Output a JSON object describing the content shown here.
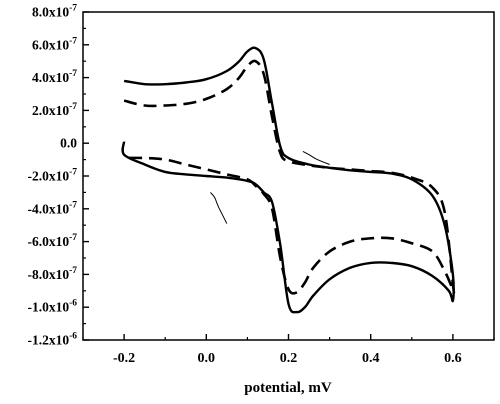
{
  "chart_data": {
    "type": "line",
    "title": "",
    "xlabel": "potential, mV",
    "ylabel": "",
    "xlim": [
      -0.3,
      0.7
    ],
    "ylim": [
      -1.2e-06,
      8e-07
    ],
    "grid": false,
    "legend": "none",
    "x_ticks": [
      {
        "value": -0.2,
        "label": "-0.2"
      },
      {
        "value": 0.0,
        "label": "0.0"
      },
      {
        "value": 0.2,
        "label": "0.2"
      },
      {
        "value": 0.4,
        "label": "0.4"
      },
      {
        "value": 0.6,
        "label": "0.6"
      }
    ],
    "y_ticks": [
      {
        "value": 8e-07,
        "mantissa": "8.0x10",
        "exp": "-7"
      },
      {
        "value": 6e-07,
        "mantissa": "6.0x10",
        "exp": "-7"
      },
      {
        "value": 4e-07,
        "mantissa": "4.0x10",
        "exp": "-7"
      },
      {
        "value": 2e-07,
        "mantissa": "2.0x10",
        "exp": "-7"
      },
      {
        "value": 0.0,
        "mantissa": "0.0",
        "exp": ""
      },
      {
        "value": -2e-07,
        "mantissa": "-2.0x10",
        "exp": "-7"
      },
      {
        "value": -4e-07,
        "mantissa": "-4.0x10",
        "exp": "-7"
      },
      {
        "value": -6e-07,
        "mantissa": "-6.0x10",
        "exp": "-7"
      },
      {
        "value": -8e-07,
        "mantissa": "-8.0x10",
        "exp": "-7"
      },
      {
        "value": -1e-06,
        "mantissa": "-1.0x10",
        "exp": "-6"
      },
      {
        "value": -1.2e-06,
        "mantissa": "-1.2x10",
        "exp": "-6"
      }
    ],
    "series": [
      {
        "style": "solid",
        "color": "#000000",
        "x": [
          -0.2,
          -0.15,
          -0.1,
          -0.05,
          0.0,
          0.05,
          0.08,
          0.1,
          0.12,
          0.14,
          0.16,
          0.18,
          0.2,
          0.25,
          0.3,
          0.35,
          0.4,
          0.45,
          0.5,
          0.55,
          0.58,
          0.6,
          0.6,
          0.59,
          0.55,
          0.5,
          0.45,
          0.4,
          0.35,
          0.3,
          0.26,
          0.24,
          0.22,
          0.2,
          0.18,
          0.16,
          0.14,
          0.12,
          0.1,
          0.05,
          0.0,
          -0.05,
          -0.1,
          -0.15,
          -0.2,
          -0.2
        ],
        "y": [
          3.8e-07,
          3.6e-07,
          3.6e-07,
          3.7e-07,
          3.9e-07,
          4.4e-07,
          5e-07,
          5.6e-07,
          5.8e-07,
          5.1e-07,
          2.4e-07,
          -2e-08,
          -9e-08,
          -1.3e-07,
          -1.5e-07,
          -1.65e-07,
          -1.75e-07,
          -1.85e-07,
          -2.2e-07,
          -3.2e-07,
          -5e-07,
          -8e-07,
          -9.6e-07,
          -9e-07,
          -8.1e-07,
          -7.5e-07,
          -7.3e-07,
          -7.3e-07,
          -7.6e-07,
          -8.3e-07,
          -9.3e-07,
          -1e-06,
          -1.03e-06,
          -9.8e-07,
          -6.2e-07,
          -3.6e-07,
          -3e-07,
          -2.5e-07,
          -2.3e-07,
          -2.1e-07,
          -2e-07,
          -1.9e-07,
          -1.75e-07,
          -1.3e-07,
          -7e-08,
          1e-08
        ]
      },
      {
        "style": "dashed",
        "color": "#000000",
        "x": [
          -0.2,
          -0.15,
          -0.1,
          -0.05,
          0.0,
          0.05,
          0.08,
          0.1,
          0.12,
          0.14,
          0.16,
          0.18,
          0.2,
          0.25,
          0.3,
          0.35,
          0.4,
          0.45,
          0.5,
          0.55,
          0.58,
          0.6,
          0.6,
          0.58,
          0.55,
          0.5,
          0.45,
          0.4,
          0.35,
          0.3,
          0.26,
          0.24,
          0.22,
          0.2,
          0.18,
          0.16,
          0.14,
          0.12,
          0.1,
          0.05,
          0.0,
          -0.05,
          -0.1,
          -0.15,
          -0.2
        ],
        "y": [
          2.6e-07,
          2.3e-07,
          2.3e-07,
          2.4e-07,
          2.7e-07,
          3.3e-07,
          4e-07,
          4.7e-07,
          5e-07,
          4.2e-07,
          1.6e-07,
          -6e-08,
          -1.1e-07,
          -1.35e-07,
          -1.5e-07,
          -1.6e-07,
          -1.7e-07,
          -1.8e-07,
          -2.1e-07,
          -2.7e-07,
          -4.2e-07,
          -8.6e-07,
          -8.9e-07,
          -7.8e-07,
          -6.6e-07,
          -6.1e-07,
          -5.8e-07,
          -5.8e-07,
          -6e-07,
          -6.6e-07,
          -7.6e-07,
          -8.5e-07,
          -9.1e-07,
          -8.9e-07,
          -7e-07,
          -4e-07,
          -3.1e-07,
          -2.6e-07,
          -2.2e-07,
          -1.9e-07,
          -1.6e-07,
          -1.3e-07,
          -1e-07,
          -9e-08,
          -9e-08
        ]
      }
    ],
    "annotations": [
      {
        "type": "arrow-line",
        "x": [
          0.3,
          0.27,
          0.25,
          0.235
        ],
        "y": [
          -1.3e-07,
          -1e-07,
          -7e-08,
          -5e-08
        ]
      },
      {
        "type": "arrow-line",
        "x": [
          0.05,
          0.03,
          0.02,
          0.01
        ],
        "y": [
          -4.9e-07,
          -3.9e-07,
          -3.3e-07,
          -3e-07
        ]
      }
    ]
  }
}
